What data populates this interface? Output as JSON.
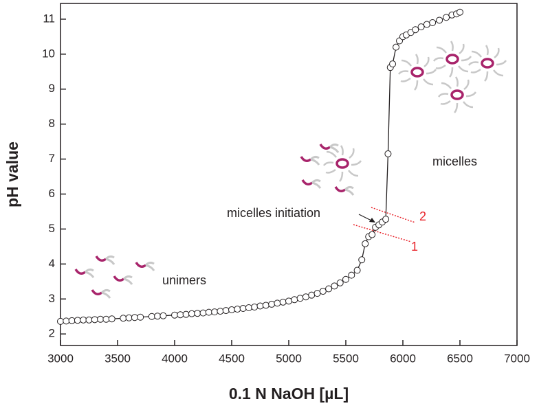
{
  "chart_data": {
    "type": "line",
    "markers": true,
    "x_label": "0.1 N NaOH [µL]",
    "y_label": "pH value",
    "color": "#231f20",
    "marker_fill": "#ffffff",
    "xlim": [
      3000,
      7000
    ],
    "ylim": [
      1.67,
      11.45
    ],
    "xticks": [
      3000,
      3500,
      4000,
      4500,
      5000,
      5500,
      6000,
      6500,
      7000
    ],
    "yticks": [
      2,
      3,
      4,
      5,
      6,
      7,
      8,
      9,
      10,
      11
    ],
    "x": [
      3000,
      3050,
      3100,
      3150,
      3200,
      3250,
      3300,
      3350,
      3400,
      3450,
      3550,
      3600,
      3650,
      3700,
      3800,
      3850,
      3900,
      4000,
      4050,
      4100,
      4150,
      4200,
      4250,
      4300,
      4350,
      4400,
      4450,
      4500,
      4550,
      4600,
      4650,
      4700,
      4750,
      4800,
      4850,
      4900,
      4950,
      5000,
      5050,
      5100,
      5150,
      5200,
      5250,
      5300,
      5350,
      5400,
      5450,
      5500,
      5550,
      5600,
      5640,
      5670,
      5700,
      5730,
      5760,
      5790,
      5820,
      5850,
      5870,
      5890,
      5910,
      5940,
      5970,
      6000,
      6030,
      6070,
      6110,
      6160,
      6210,
      6260,
      6320,
      6380,
      6430,
      6470,
      6500
    ],
    "values": [
      2.36,
      2.37,
      2.38,
      2.39,
      2.4,
      2.4,
      2.41,
      2.42,
      2.42,
      2.43,
      2.45,
      2.46,
      2.47,
      2.48,
      2.5,
      2.51,
      2.52,
      2.54,
      2.55,
      2.56,
      2.58,
      2.59,
      2.6,
      2.62,
      2.63,
      2.65,
      2.67,
      2.69,
      2.71,
      2.73,
      2.75,
      2.77,
      2.8,
      2.82,
      2.85,
      2.88,
      2.91,
      2.94,
      2.98,
      3.02,
      3.06,
      3.11,
      3.16,
      3.22,
      3.29,
      3.37,
      3.46,
      3.56,
      3.68,
      3.82,
      4.12,
      4.58,
      4.78,
      4.84,
      5.05,
      5.12,
      5.2,
      5.28,
      7.15,
      9.62,
      9.72,
      10.2,
      10.38,
      10.5,
      10.55,
      10.62,
      10.7,
      10.78,
      10.85,
      10.9,
      10.97,
      11.05,
      11.12,
      11.15,
      11.2
    ],
    "annotations": [
      "unimers",
      "micelles",
      "micelles initiation",
      "1",
      "2"
    ]
  }
}
